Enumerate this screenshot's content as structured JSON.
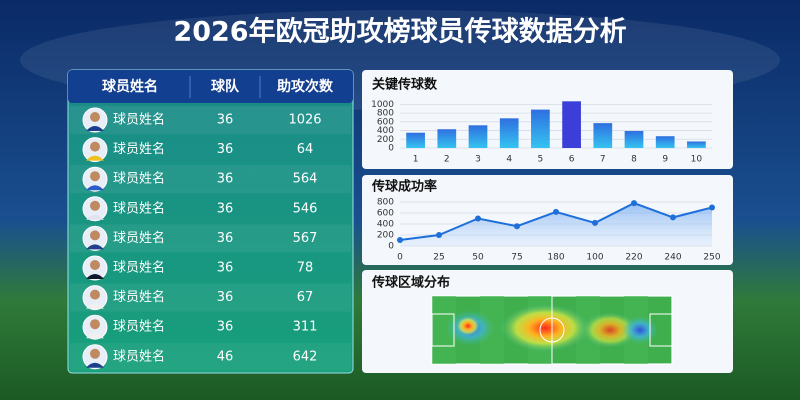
{
  "title": "2026年欧冠助攻榜球员传球数据分析",
  "table": {
    "header": [
      "球员姓名",
      "球队",
      "助攻次数"
    ],
    "rows": [
      [
        "球员姓名",
        36,
        1026
      ],
      [
        "球员姓名",
        36,
        64
      ],
      [
        "球员姓名",
        36,
        564
      ],
      [
        "球员姓名",
        36,
        546
      ],
      [
        "球员姓名",
        36,
        567
      ],
      [
        "球员姓名",
        36,
        78
      ],
      [
        "球员姓名",
        36,
        67
      ],
      [
        "球员姓名",
        36,
        311
      ],
      [
        "球员姓名",
        46,
        642
      ]
    ]
  },
  "chart_data": [
    {
      "type": "bar",
      "title": "关键传球数",
      "categories": [
        "1",
        "2",
        "3",
        "4",
        "5",
        "6",
        "7",
        "8",
        "9",
        "10"
      ],
      "values": [
        350,
        430,
        520,
        680,
        880,
        1070,
        570,
        390,
        270,
        150
      ],
      "color": "#29a6e8",
      "ylim": [
        0,
        1100
      ],
      "yticks": [
        0,
        200,
        400,
        600,
        800,
        1000
      ],
      "grid": true
    },
    {
      "type": "line",
      "title": "传球成功率",
      "categories": [
        "0",
        "25",
        "50",
        "75",
        "180",
        "100",
        "220",
        "240",
        "250"
      ],
      "values": [
        110,
        200,
        500,
        360,
        620,
        420,
        780,
        520,
        700
      ],
      "color": "#1e6fd9",
      "ylim": [
        0,
        800
      ],
      "yticks": [
        0,
        200,
        400,
        600,
        800
      ],
      "grid": true
    }
  ],
  "heatmap": {
    "title": "传球区域分布"
  }
}
